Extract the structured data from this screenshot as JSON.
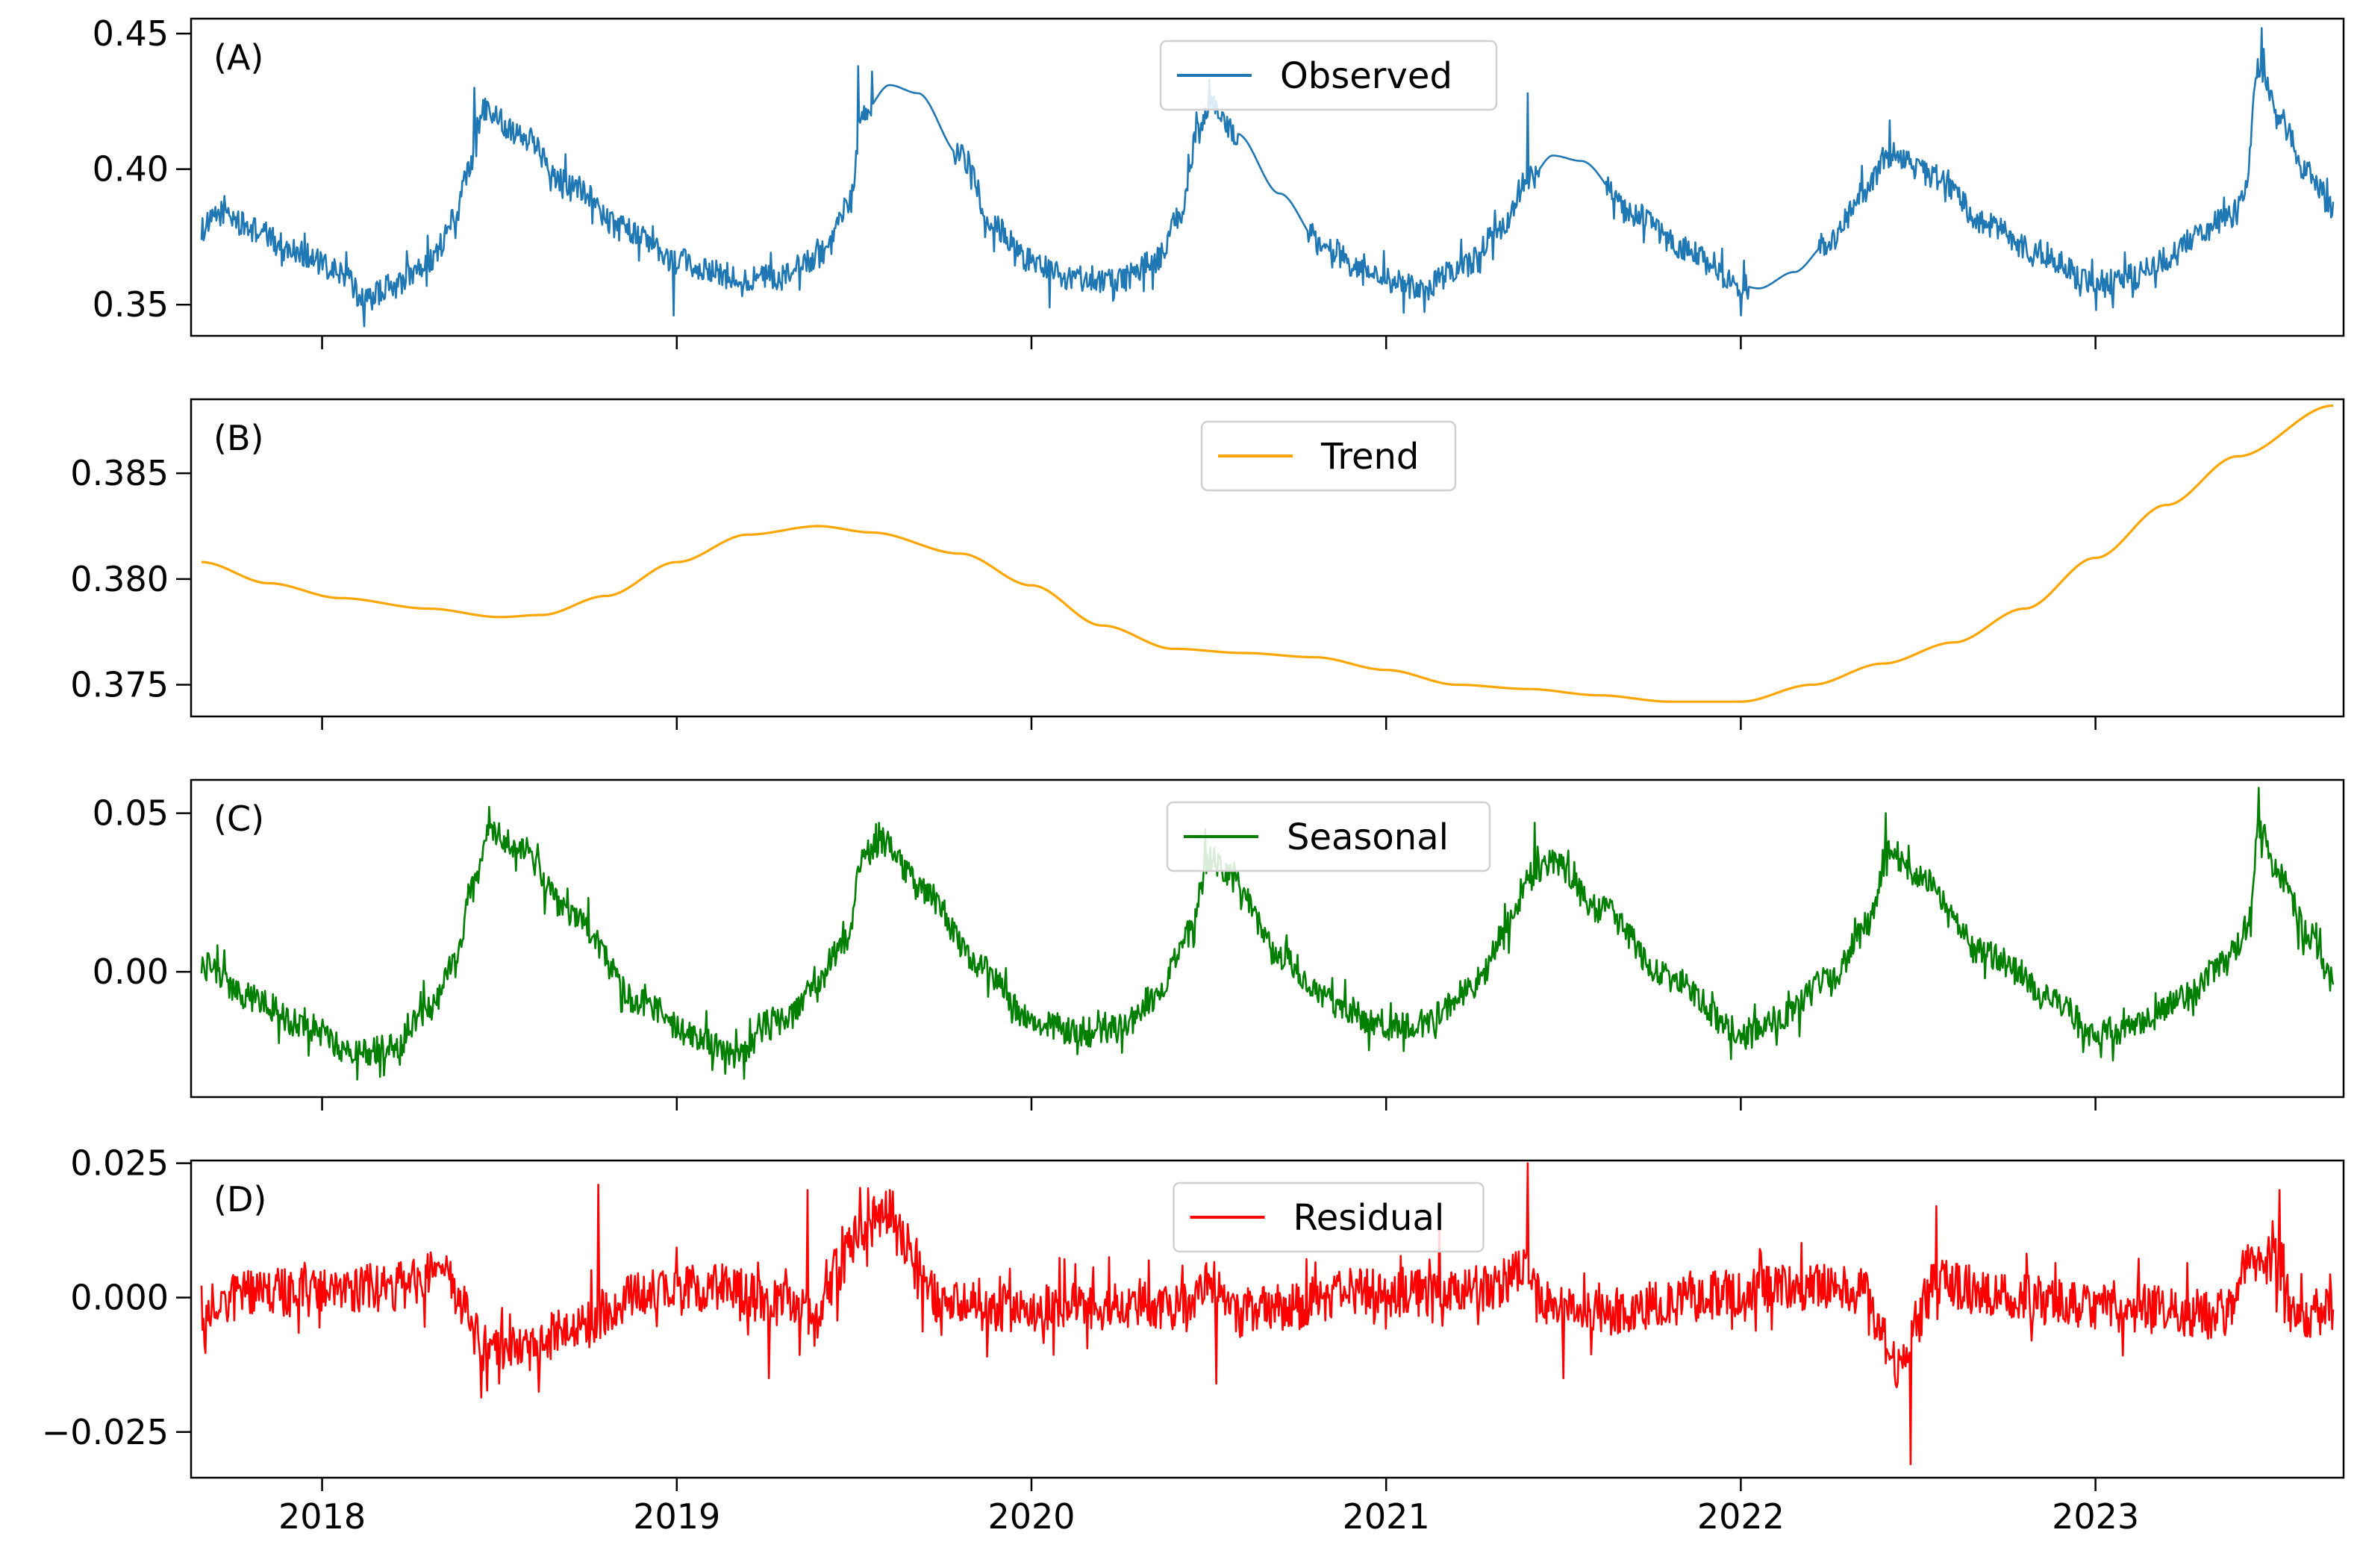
{
  "chart_data": [
    {
      "type": "line",
      "panel_label": "(A)",
      "legend": "Observed",
      "legend_position": "top-center",
      "color": "#1f77b4",
      "x_range": [
        2017.66,
        2023.67
      ],
      "ylim": [
        0.3385,
        0.4555
      ],
      "yticks": [
        0.35,
        0.4,
        0.45
      ],
      "ytick_labels": [
        "0.35",
        "0.40",
        "0.45"
      ],
      "baseline": [
        [
          2017.66,
          0.378
        ],
        [
          2017.72,
          0.384
        ],
        [
          2017.8,
          0.378
        ],
        [
          2017.92,
          0.37
        ],
        [
          2018.05,
          0.362
        ],
        [
          2018.12,
          0.352
        ],
        [
          2018.2,
          0.357
        ],
        [
          2018.3,
          0.366
        ],
        [
          2018.37,
          0.378
        ],
        [
          2018.41,
          0.398
        ],
        [
          2018.45,
          0.423
        ],
        [
          2018.55,
          0.414
        ],
        [
          2018.7,
          0.395
        ],
        [
          2018.85,
          0.378
        ],
        [
          2019.0,
          0.366
        ],
        [
          2019.15,
          0.36
        ],
        [
          2019.3,
          0.36
        ],
        [
          2019.42,
          0.369
        ],
        [
          2019.49,
          0.388
        ],
        [
          2019.52,
          0.42
        ],
        [
          2019.6,
          0.431
        ],
        [
          2019.68,
          0.428
        ],
        [
          2019.8,
          0.405
        ],
        [
          2019.9,
          0.378
        ],
        [
          2020.0,
          0.366
        ],
        [
          2020.1,
          0.36
        ],
        [
          2020.25,
          0.359
        ],
        [
          2020.35,
          0.366
        ],
        [
          2020.42,
          0.383
        ],
        [
          2020.47,
          0.413
        ],
        [
          2020.51,
          0.424
        ],
        [
          2020.58,
          0.413
        ],
        [
          2020.7,
          0.391
        ],
        [
          2020.82,
          0.372
        ],
        [
          2020.95,
          0.361
        ],
        [
          2021.1,
          0.356
        ],
        [
          2021.22,
          0.364
        ],
        [
          2021.32,
          0.377
        ],
        [
          2021.4,
          0.396
        ],
        [
          2021.47,
          0.405
        ],
        [
          2021.55,
          0.403
        ],
        [
          2021.7,
          0.383
        ],
        [
          2021.85,
          0.37
        ],
        [
          2022.0,
          0.357
        ],
        [
          2022.05,
          0.356
        ],
        [
          2022.15,
          0.362
        ],
        [
          2022.25,
          0.373
        ],
        [
          2022.35,
          0.392
        ],
        [
          2022.42,
          0.406
        ],
        [
          2022.55,
          0.397
        ],
        [
          2022.7,
          0.379
        ],
        [
          2022.85,
          0.368
        ],
        [
          2023.0,
          0.357
        ],
        [
          2023.1,
          0.36
        ],
        [
          2023.2,
          0.367
        ],
        [
          2023.3,
          0.377
        ],
        [
          2023.38,
          0.383
        ],
        [
          2023.42,
          0.392
        ],
        [
          2023.46,
          0.438
        ],
        [
          2023.52,
          0.418
        ],
        [
          2023.6,
          0.398
        ],
        [
          2023.67,
          0.385
        ]
      ],
      "noise": 0.0048,
      "spikes": [
        [
          2018.43,
          0.43
        ],
        [
          2019.51,
          0.438
        ],
        [
          2019.55,
          0.436
        ],
        [
          2020.5,
          0.433
        ],
        [
          2021.4,
          0.428
        ],
        [
          2022.42,
          0.418
        ],
        [
          2023.47,
          0.452
        ],
        [
          2018.12,
          0.342
        ],
        [
          2020.05,
          0.349
        ],
        [
          2021.05,
          0.347
        ],
        [
          2022.0,
          0.346
        ],
        [
          2023.05,
          0.349
        ],
        [
          2018.99,
          0.346
        ]
      ],
      "smooth_segments": [
        [
          2019.55,
          2019.78
        ],
        [
          2020.58,
          2020.78
        ],
        [
          2021.43,
          2021.62
        ],
        [
          2022.02,
          2022.22
        ]
      ]
    },
    {
      "type": "line",
      "panel_label": "(B)",
      "legend": "Trend",
      "legend_position": "top-center",
      "color": "#ffa500",
      "x_range": [
        2017.66,
        2023.67
      ],
      "ylim": [
        0.3735,
        0.3885
      ],
      "yticks": [
        0.375,
        0.38,
        0.385
      ],
      "ytick_labels": [
        "0.375",
        "0.380",
        "0.385"
      ],
      "baseline": [
        [
          2017.66,
          0.3808
        ],
        [
          2017.85,
          0.3798
        ],
        [
          2018.05,
          0.3791
        ],
        [
          2018.3,
          0.3786
        ],
        [
          2018.5,
          0.3782
        ],
        [
          2018.62,
          0.3783
        ],
        [
          2018.8,
          0.3792
        ],
        [
          2019.0,
          0.3808
        ],
        [
          2019.2,
          0.3821
        ],
        [
          2019.4,
          0.3825
        ],
        [
          2019.55,
          0.3822
        ],
        [
          2019.8,
          0.3812
        ],
        [
          2020.0,
          0.3797
        ],
        [
          2020.2,
          0.3778
        ],
        [
          2020.4,
          0.3767
        ],
        [
          2020.6,
          0.3765
        ],
        [
          2020.8,
          0.3763
        ],
        [
          2021.0,
          0.3757
        ],
        [
          2021.2,
          0.375
        ],
        [
          2021.4,
          0.3748
        ],
        [
          2021.6,
          0.3745
        ],
        [
          2021.8,
          0.3742
        ],
        [
          2022.0,
          0.3742
        ],
        [
          2022.2,
          0.375
        ],
        [
          2022.4,
          0.376
        ],
        [
          2022.6,
          0.377
        ],
        [
          2022.8,
          0.3786
        ],
        [
          2023.0,
          0.381
        ],
        [
          2023.2,
          0.3835
        ],
        [
          2023.4,
          0.3858
        ],
        [
          2023.67,
          0.3882
        ]
      ],
      "noise": 0,
      "spikes": [],
      "smooth_segments": []
    },
    {
      "type": "line",
      "panel_label": "(C)",
      "legend": "Seasonal",
      "legend_position": "top-center",
      "color": "#007f00",
      "x_range": [
        2017.66,
        2023.67
      ],
      "ylim": [
        -0.0395,
        0.0605
      ],
      "yticks": [
        0.0,
        0.05
      ],
      "ytick_labels": [
        "0.00",
        "0.05"
      ],
      "baseline": [
        [
          2017.66,
          0.002
        ],
        [
          2017.8,
          -0.008
        ],
        [
          2017.95,
          -0.017
        ],
        [
          2018.1,
          -0.026
        ],
        [
          2018.2,
          -0.024
        ],
        [
          2018.3,
          -0.012
        ],
        [
          2018.37,
          0.002
        ],
        [
          2018.43,
          0.03
        ],
        [
          2018.48,
          0.045
        ],
        [
          2018.55,
          0.039
        ],
        [
          2018.7,
          0.018
        ],
        [
          2018.9,
          -0.01
        ],
        [
          2019.05,
          -0.02
        ],
        [
          2019.15,
          -0.026
        ],
        [
          2019.3,
          -0.016
        ],
        [
          2019.4,
          -0.002
        ],
        [
          2019.48,
          0.01
        ],
        [
          2019.52,
          0.035
        ],
        [
          2019.58,
          0.041
        ],
        [
          2019.7,
          0.025
        ],
        [
          2019.85,
          0.002
        ],
        [
          2020.0,
          -0.015
        ],
        [
          2020.15,
          -0.02
        ],
        [
          2020.25,
          -0.018
        ],
        [
          2020.35,
          -0.008
        ],
        [
          2020.45,
          0.012
        ],
        [
          2020.5,
          0.036
        ],
        [
          2020.56,
          0.03
        ],
        [
          2020.7,
          0.005
        ],
        [
          2020.85,
          -0.01
        ],
        [
          2021.0,
          -0.018
        ],
        [
          2021.1,
          -0.016
        ],
        [
          2021.25,
          -0.005
        ],
        [
          2021.35,
          0.015
        ],
        [
          2021.4,
          0.03
        ],
        [
          2021.47,
          0.034
        ],
        [
          2021.6,
          0.02
        ],
        [
          2021.8,
          -0.002
        ],
        [
          2022.0,
          -0.019
        ],
        [
          2022.12,
          -0.014
        ],
        [
          2022.25,
          -0.002
        ],
        [
          2022.35,
          0.012
        ],
        [
          2022.42,
          0.038
        ],
        [
          2022.5,
          0.03
        ],
        [
          2022.7,
          0.005
        ],
        [
          2022.9,
          -0.01
        ],
        [
          2023.0,
          -0.02
        ],
        [
          2023.1,
          -0.018
        ],
        [
          2023.25,
          -0.008
        ],
        [
          2023.38,
          0.005
        ],
        [
          2023.43,
          0.015
        ],
        [
          2023.46,
          0.045
        ],
        [
          2023.52,
          0.03
        ],
        [
          2023.6,
          0.012
        ],
        [
          2023.67,
          -0.003
        ]
      ],
      "noise": 0.0045,
      "spikes": [
        [
          2018.47,
          0.052
        ],
        [
          2019.57,
          0.047
        ],
        [
          2020.49,
          0.045
        ],
        [
          2021.42,
          0.047
        ],
        [
          2022.41,
          0.05
        ],
        [
          2023.46,
          0.058
        ],
        [
          2018.1,
          -0.034
        ],
        [
          2019.1,
          -0.031
        ],
        [
          2020.13,
          -0.026
        ],
        [
          2021.05,
          -0.025
        ],
        [
          2022.03,
          -0.024
        ],
        [
          2023.05,
          -0.028
        ]
      ],
      "smooth_segments": []
    },
    {
      "type": "line",
      "panel_label": "(D)",
      "legend": "Residual",
      "legend_position": "top-center",
      "color": "#ff0000",
      "x_range": [
        2017.66,
        2023.67
      ],
      "ylim": [
        -0.0335,
        0.0255
      ],
      "yticks": [
        -0.025,
        0.0,
        0.025
      ],
      "ytick_labels": [
        "−0.025",
        "0.000",
        "0.025"
      ],
      "baseline": [
        [
          2017.66,
          -0.002
        ],
        [
          2017.8,
          0.001
        ],
        [
          2018.0,
          0.001
        ],
        [
          2018.2,
          0.002
        ],
        [
          2018.35,
          0.005
        ],
        [
          2018.4,
          -0.002
        ],
        [
          2018.45,
          -0.009
        ],
        [
          2018.55,
          -0.01
        ],
        [
          2018.7,
          -0.006
        ],
        [
          2018.9,
          0.001
        ],
        [
          2019.1,
          0.002
        ],
        [
          2019.3,
          -0.001
        ],
        [
          2019.4,
          -0.003
        ],
        [
          2019.45,
          0.005
        ],
        [
          2019.52,
          0.012
        ],
        [
          2019.58,
          0.016
        ],
        [
          2019.65,
          0.01
        ],
        [
          2019.72,
          0.0
        ],
        [
          2019.9,
          -0.002
        ],
        [
          2020.1,
          -0.002
        ],
        [
          2020.3,
          -0.001
        ],
        [
          2020.45,
          -0.002
        ],
        [
          2020.5,
          0.004
        ],
        [
          2020.56,
          -0.003
        ],
        [
          2020.7,
          -0.002
        ],
        [
          2020.9,
          0.001
        ],
        [
          2021.1,
          0.001
        ],
        [
          2021.3,
          0.002
        ],
        [
          2021.4,
          0.006
        ],
        [
          2021.44,
          -0.001
        ],
        [
          2021.6,
          -0.003
        ],
        [
          2021.8,
          -0.001
        ],
        [
          2022.0,
          0.001
        ],
        [
          2022.2,
          0.002
        ],
        [
          2022.35,
          0.001
        ],
        [
          2022.4,
          -0.008
        ],
        [
          2022.45,
          -0.014
        ],
        [
          2022.5,
          -0.004
        ],
        [
          2022.55,
          0.003
        ],
        [
          2022.7,
          0.001
        ],
        [
          2022.9,
          -0.001
        ],
        [
          2023.1,
          -0.002
        ],
        [
          2023.3,
          -0.003
        ],
        [
          2023.38,
          -0.003
        ],
        [
          2023.43,
          0.007
        ],
        [
          2023.5,
          0.007
        ],
        [
          2023.57,
          -0.004
        ],
        [
          2023.67,
          -0.002
        ]
      ],
      "noise": 0.0045,
      "spikes": [
        [
          2018.78,
          0.021
        ],
        [
          2019.37,
          0.02
        ],
        [
          2021.4,
          0.025
        ],
        [
          2022.48,
          -0.031
        ],
        [
          2023.52,
          0.02
        ],
        [
          2018.5,
          -0.016
        ],
        [
          2019.26,
          -0.015
        ],
        [
          2020.52,
          -0.016
        ],
        [
          2021.15,
          0.017
        ],
        [
          2022.55,
          0.017
        ],
        [
          2019.6,
          0.02
        ],
        [
          2021.5,
          -0.015
        ]
      ],
      "smooth_segments": []
    }
  ],
  "x_axis": {
    "ticks": [
      2018,
      2019,
      2020,
      2021,
      2022,
      2023
    ],
    "tick_labels": [
      "2018",
      "2019",
      "2020",
      "2021",
      "2022",
      "2023"
    ]
  }
}
